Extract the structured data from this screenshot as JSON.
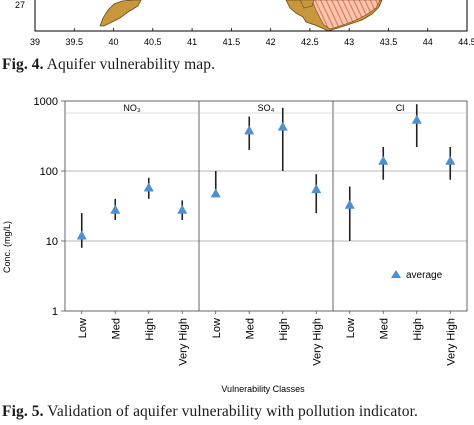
{
  "map_axis": {
    "y_tick": "27",
    "x_ticks": [
      "39",
      "39.5",
      "40",
      "40.5",
      "41",
      "41.5",
      "42",
      "42.5",
      "43",
      "43.5",
      "44",
      "44.5"
    ],
    "x_values": [
      39,
      39.5,
      40,
      40.5,
      41,
      41.5,
      42,
      42.5,
      43,
      43.5,
      44,
      44.5
    ],
    "land_color": "#c8963c",
    "hatch_color": "#e8734e"
  },
  "figure4": {
    "label": "Fig. 4.",
    "text": " Aquifer vulnerability map."
  },
  "figure5": {
    "label": "Fig. 5.",
    "text": " Validation of aquifer vulnerability with pollution indicator."
  },
  "chart_data": {
    "type": "scatter",
    "scale": "log",
    "ylim": [
      1,
      1000
    ],
    "y_ticks": [
      1,
      10,
      100,
      1000
    ],
    "y_tick_labels": [
      "1",
      "10",
      "100",
      "1000"
    ],
    "ylabel": "Conc. (mg/L)",
    "xlabel": "Vulnerability Classes",
    "panels": [
      "NO₃",
      "SO₄",
      "Cl"
    ],
    "categories": [
      "Low",
      "Med",
      "High",
      "Very High"
    ],
    "legend": {
      "label": "average",
      "position": "right"
    },
    "marker_color": "#4d8fcf",
    "grid": true,
    "series": [
      {
        "panel": "NO₃",
        "avg": [
          12,
          28,
          58,
          28
        ],
        "min": [
          8,
          20,
          40,
          20
        ],
        "max": [
          25,
          40,
          80,
          38
        ]
      },
      {
        "panel": "SO₄",
        "avg": [
          48,
          380,
          430,
          55
        ],
        "min": [
          45,
          200,
          100,
          25
        ],
        "max": [
          100,
          600,
          800,
          90
        ]
      },
      {
        "panel": "Cl",
        "avg": [
          33,
          140,
          540,
          140
        ],
        "min": [
          10,
          75,
          220,
          75
        ],
        "max": [
          60,
          220,
          900,
          220
        ]
      }
    ]
  }
}
